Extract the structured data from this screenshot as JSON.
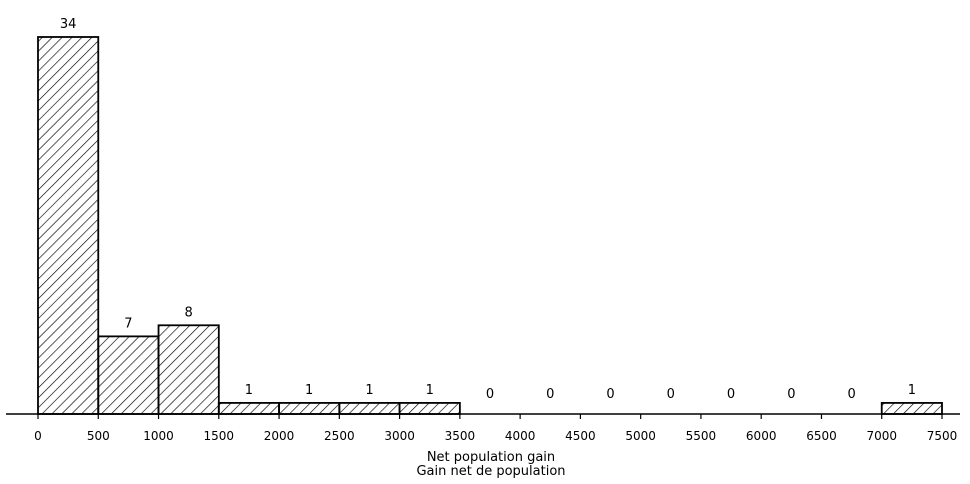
{
  "chart_data": {
    "type": "bar",
    "bin_edges": [
      0,
      500,
      1000,
      1500,
      2000,
      2500,
      3000,
      3500,
      4000,
      4500,
      5000,
      5500,
      6000,
      6500,
      7000,
      7500
    ],
    "values": [
      34,
      7,
      8,
      1,
      1,
      1,
      1,
      0,
      0,
      0,
      0,
      0,
      0,
      0,
      1
    ],
    "data_labels": [
      "34",
      "7",
      "8",
      "1",
      "1",
      "1",
      "1",
      "0",
      "0",
      "0",
      "0",
      "0",
      "0",
      "0",
      "1"
    ],
    "x_tick_labels": [
      "0",
      "500",
      "1000",
      "1500",
      "2000",
      "2500",
      "3000",
      "3500",
      "4000",
      "4500",
      "5000",
      "5500",
      "6000",
      "6500",
      "7000",
      "7500"
    ],
    "xlabel": "Net population gain",
    "xlabel_2": "Gain net de population",
    "xlim": [
      0,
      7500
    ],
    "ylim": [
      0,
      34
    ],
    "grid": false,
    "bar_fill": "hatched",
    "bar_color": "#000000"
  }
}
